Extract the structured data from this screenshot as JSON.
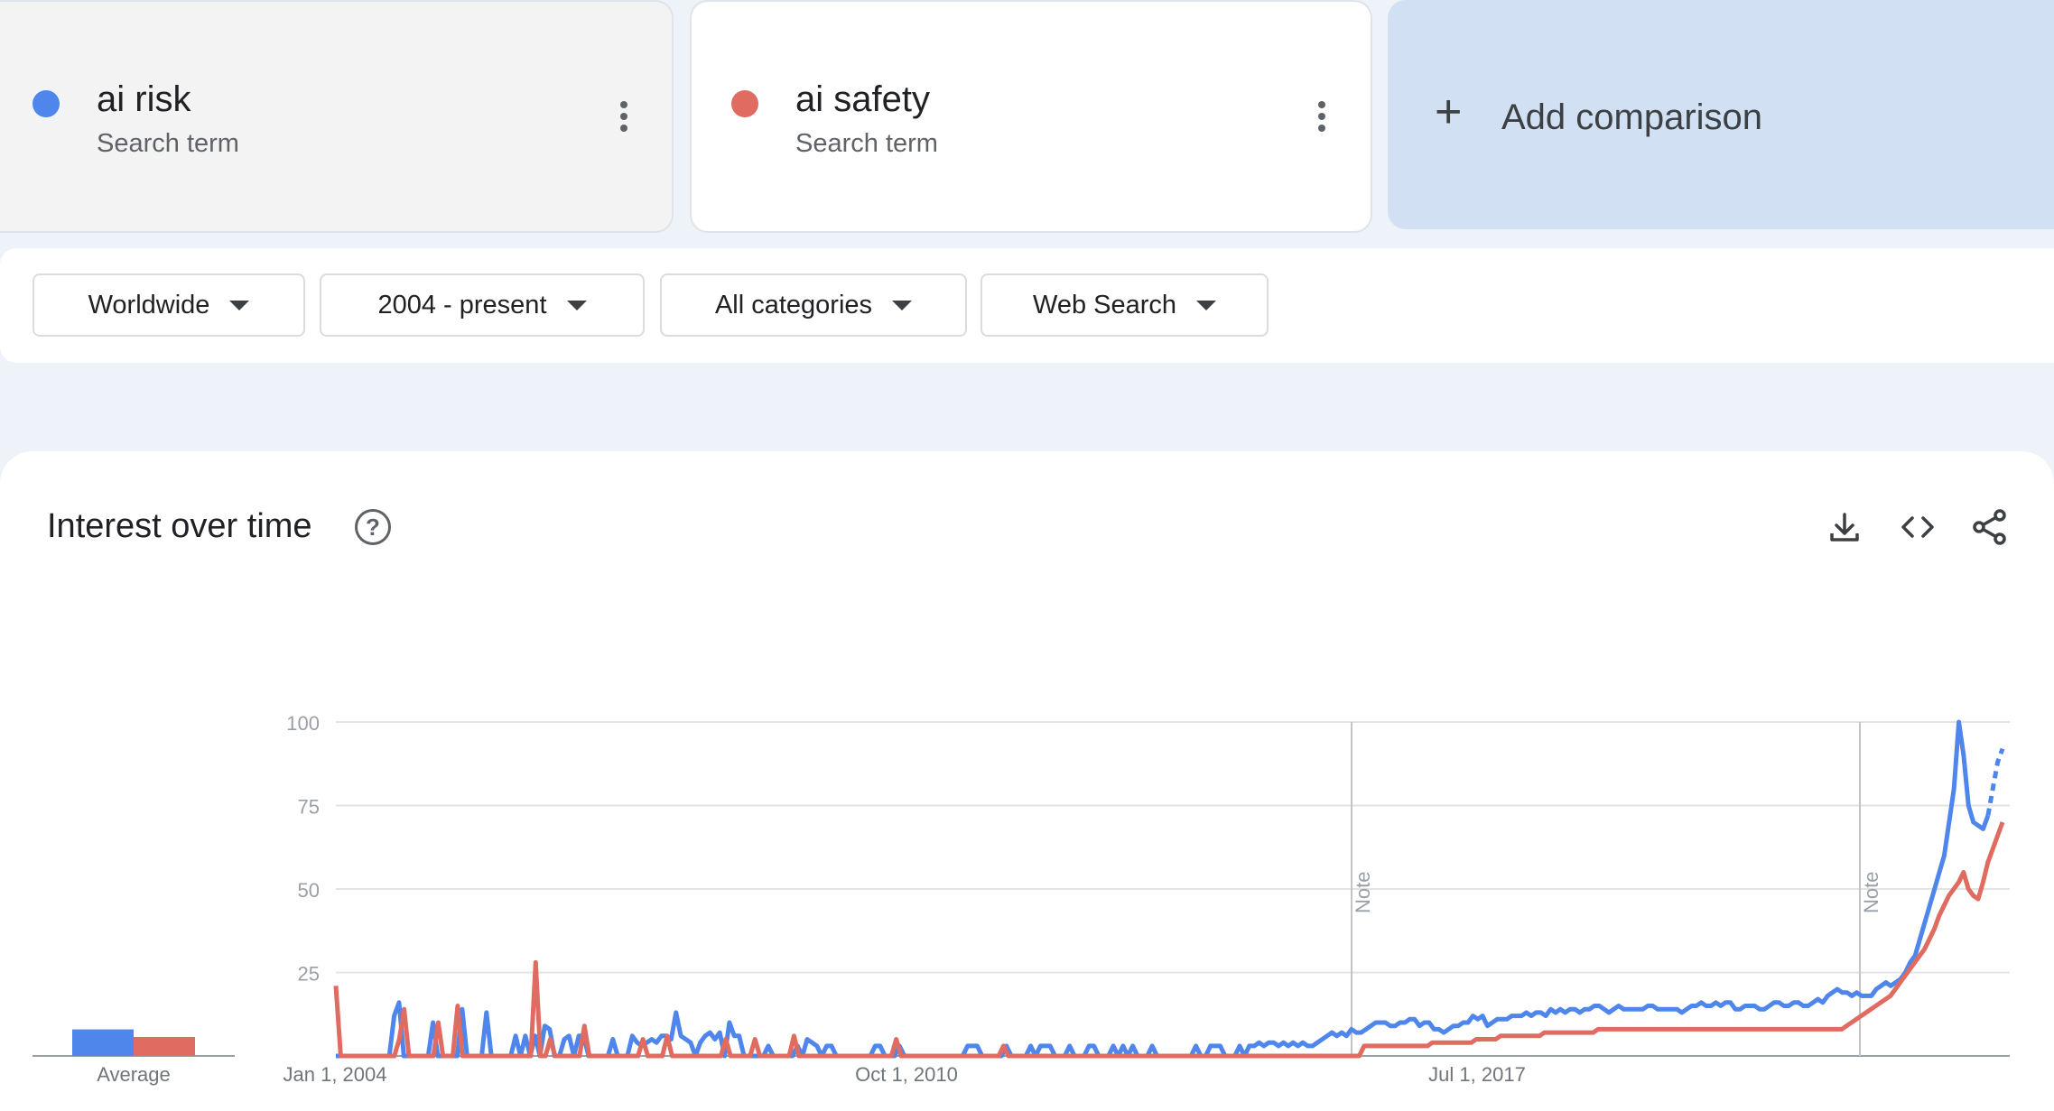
{
  "terms": [
    {
      "name": "ai risk",
      "type": "Search term",
      "color": "#4f86ec"
    },
    {
      "name": "ai safety",
      "type": "Search term",
      "color": "#e06b61"
    }
  ],
  "add_comparison": {
    "label": "Add comparison",
    "plus": "+"
  },
  "filters": [
    {
      "label": "Worldwide"
    },
    {
      "label": "2004 - present"
    },
    {
      "label": "All categories"
    },
    {
      "label": "Web Search"
    }
  ],
  "panel": {
    "title": "Interest over time",
    "help": "?",
    "tools": [
      "download-icon",
      "embed-icon",
      "share-icon"
    ]
  },
  "chart_data": {
    "type": "line",
    "ylim": [
      0,
      100
    ],
    "yticks": [
      "100",
      "75",
      "50",
      "25"
    ],
    "xticks": [
      "Jan 1, 2004",
      "Oct 1, 2010",
      "Jul 1, 2017"
    ],
    "notes": [
      "Note",
      "Note"
    ],
    "average_label": "Average",
    "averages": [
      7,
      5
    ],
    "series": [
      {
        "name": "ai risk",
        "color": "#4f86ec",
        "values": [
          0,
          0,
          0,
          0,
          0,
          0,
          0,
          0,
          0,
          0,
          0,
          0,
          12,
          16,
          0,
          0,
          0,
          0,
          0,
          0,
          10,
          0,
          0,
          0,
          0,
          0,
          14,
          0,
          0,
          0,
          0,
          13,
          0,
          0,
          0,
          0,
          0,
          6,
          0,
          6,
          0,
          6,
          0,
          9,
          8,
          0,
          0,
          5,
          6,
          0,
          6,
          6,
          0,
          0,
          0,
          0,
          0,
          5,
          0,
          0,
          0,
          6,
          4,
          3,
          4,
          5,
          4,
          6,
          6,
          5,
          13,
          6,
          5,
          4,
          0,
          4,
          6,
          7,
          5,
          7,
          0,
          10,
          6,
          6,
          0,
          0,
          0,
          0,
          0,
          3,
          0,
          0,
          0,
          0,
          0,
          3,
          0,
          5,
          4,
          3,
          0,
          3,
          3,
          0,
          0,
          0,
          0,
          0,
          0,
          0,
          0,
          3,
          3,
          0,
          0,
          0,
          3,
          0,
          0,
          0,
          0,
          0,
          0,
          0,
          0,
          0,
          0,
          0,
          0,
          0,
          3,
          3,
          3,
          0,
          0,
          0,
          0,
          0,
          3,
          0,
          0,
          0,
          0,
          3,
          0,
          3,
          3,
          3,
          0,
          0,
          0,
          3,
          0,
          0,
          0,
          3,
          3,
          0,
          0,
          0,
          3,
          0,
          3,
          0,
          3,
          0,
          0,
          0,
          3,
          0,
          0,
          0,
          0,
          0,
          0,
          0,
          0,
          3,
          0,
          0,
          3,
          3,
          3,
          0,
          0,
          0,
          3,
          0,
          3,
          3,
          4,
          3,
          4,
          4,
          3,
          4,
          3,
          4,
          3,
          4,
          3,
          3,
          4,
          5,
          6,
          7,
          6,
          7,
          6,
          8,
          7,
          7,
          8,
          9,
          10,
          10,
          10,
          9,
          9,
          10,
          10,
          11,
          11,
          9,
          10,
          10,
          8,
          8,
          7,
          8,
          9,
          9,
          10,
          10,
          12,
          11,
          12,
          9,
          10,
          11,
          11,
          11,
          12,
          12,
          12,
          13,
          12,
          13,
          13,
          12,
          14,
          13,
          14,
          13,
          14,
          14,
          13,
          14,
          14,
          15,
          15,
          14,
          13,
          14,
          15,
          14,
          14,
          14,
          14,
          14,
          15,
          15,
          14,
          14,
          14,
          14,
          14,
          13,
          14,
          15,
          15,
          16,
          15,
          15,
          16,
          15,
          16,
          16,
          14,
          14,
          15,
          15,
          15,
          14,
          14,
          15,
          16,
          16,
          15,
          15,
          16,
          16,
          15,
          15,
          16,
          17,
          16,
          18,
          19,
          20,
          19,
          19,
          18,
          19,
          18,
          18,
          18,
          20,
          21,
          22,
          21,
          22,
          23,
          25,
          28,
          30,
          35,
          40,
          45,
          50,
          55,
          60,
          70,
          80,
          100,
          90,
          75,
          70,
          69,
          68,
          72,
          80,
          88,
          92
        ]
      },
      {
        "name": "ai safety",
        "color": "#e06b61",
        "values": [
          21,
          0,
          0,
          0,
          0,
          0,
          0,
          0,
          0,
          0,
          0,
          0,
          0,
          5,
          14,
          0,
          0,
          0,
          0,
          0,
          0,
          10,
          0,
          0,
          0,
          15,
          0,
          0,
          0,
          0,
          0,
          0,
          0,
          0,
          0,
          0,
          0,
          0,
          0,
          0,
          0,
          28,
          0,
          0,
          5,
          0,
          0,
          0,
          0,
          0,
          0,
          9,
          0,
          0,
          0,
          0,
          0,
          0,
          0,
          0,
          0,
          0,
          0,
          5,
          0,
          0,
          0,
          0,
          6,
          0,
          0,
          0,
          0,
          0,
          0,
          0,
          0,
          0,
          0,
          0,
          5,
          0,
          0,
          0,
          0,
          0,
          5,
          0,
          0,
          0,
          0,
          0,
          0,
          0,
          6,
          0,
          0,
          0,
          0,
          0,
          0,
          0,
          0,
          0,
          0,
          0,
          0,
          0,
          0,
          0,
          0,
          0,
          0,
          0,
          0,
          5,
          0,
          0,
          0,
          0,
          0,
          0,
          0,
          0,
          0,
          0,
          0,
          0,
          0,
          0,
          0,
          0,
          0,
          0,
          0,
          0,
          0,
          3,
          0,
          0,
          0,
          0,
          0,
          0,
          0,
          0,
          0,
          0,
          0,
          0,
          0,
          0,
          0,
          0,
          0,
          0,
          0,
          0,
          0,
          0,
          0,
          0,
          0,
          0,
          0,
          0,
          0,
          0,
          0,
          0,
          0,
          0,
          0,
          0,
          0,
          0,
          0,
          0,
          0,
          0,
          0,
          0,
          0,
          0,
          0,
          0,
          0,
          0,
          0,
          0,
          0,
          0,
          0,
          0,
          0,
          0,
          0,
          0,
          0,
          0,
          0,
          0,
          0,
          0,
          0,
          0,
          0,
          0,
          0,
          0,
          0,
          3,
          3,
          3,
          3,
          3,
          3,
          3,
          3,
          3,
          3,
          3,
          3,
          3,
          3,
          4,
          4,
          4,
          4,
          4,
          4,
          4,
          4,
          4,
          5,
          5,
          5,
          5,
          5,
          6,
          6,
          6,
          6,
          6,
          6,
          6,
          6,
          6,
          7,
          7,
          7,
          7,
          7,
          7,
          7,
          7,
          7,
          7,
          7,
          8,
          8,
          8,
          8,
          8,
          8,
          8,
          8,
          8,
          8,
          8,
          8,
          8,
          8,
          8,
          8,
          8,
          8,
          8,
          8,
          8,
          8,
          8,
          8,
          8,
          8,
          8,
          8,
          8,
          8,
          8,
          8,
          8,
          8,
          8,
          8,
          8,
          8,
          8,
          8,
          8,
          8,
          8,
          8,
          8,
          8,
          8,
          8,
          8,
          8,
          8,
          9,
          10,
          11,
          12,
          13,
          14,
          15,
          16,
          17,
          18,
          20,
          22,
          24,
          26,
          28,
          30,
          32,
          35,
          38,
          42,
          45,
          48,
          50,
          52,
          55,
          50,
          48,
          47,
          52,
          58,
          62,
          66,
          70
        ]
      }
    ]
  }
}
